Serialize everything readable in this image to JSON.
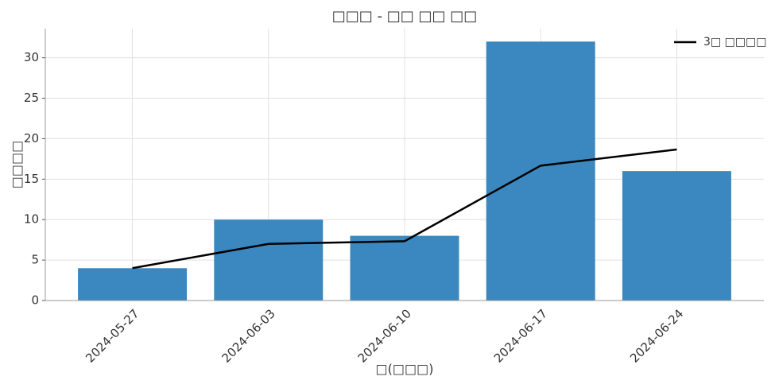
{
  "chart_data": {
    "type": "bar",
    "title": "□□□ - □□ □□ □□",
    "x_label": "□(□□□)",
    "y_label": "□□□□",
    "categories": [
      "2024-05-27",
      "2024-06-03",
      "2024-06-10",
      "2024-06-17",
      "2024-06-24"
    ],
    "series": [
      {
        "name": null,
        "type": "bar",
        "color": "#3a88bf",
        "values": [
          4,
          10,
          8,
          32,
          16
        ]
      },
      {
        "name": "3□ □□□□",
        "type": "line",
        "color": "#000000",
        "values": [
          4,
          7,
          7.33,
          16.67,
          18.67
        ]
      }
    ],
    "ylim": [
      0,
      33.6
    ],
    "yticks": [
      0,
      5,
      10,
      15,
      20,
      25,
      30
    ],
    "grid": true,
    "legend": "upper right"
  }
}
